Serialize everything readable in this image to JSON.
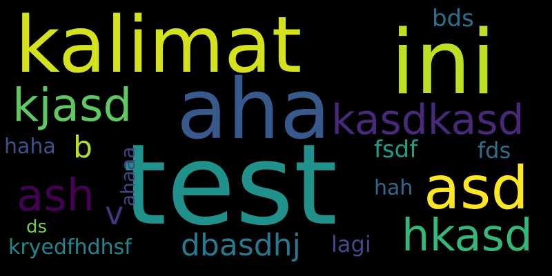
{
  "words": [
    {
      "text": "kalimat",
      "color": "#d3e21c"
    },
    {
      "text": "ini",
      "color": "#bddf26"
    },
    {
      "text": "aha",
      "color": "#38598c"
    },
    {
      "text": "test",
      "color": "#21918c"
    },
    {
      "text": "kjasd",
      "color": "#5ec962"
    },
    {
      "text": "kasdkasd",
      "color": "#482878"
    },
    {
      "text": "asd",
      "color": "#fde725"
    },
    {
      "text": "ash",
      "color": "#440154"
    },
    {
      "text": "hkasd",
      "color": "#35b779"
    },
    {
      "text": "dbasdhj",
      "color": "#2a788e"
    },
    {
      "text": "kryedfhdhsf",
      "color": "#25858e"
    },
    {
      "text": "bds",
      "color": "#2c728e"
    },
    {
      "text": "haha",
      "color": "#3b528b"
    },
    {
      "text": "b",
      "color": "#b5de2b"
    },
    {
      "text": "ahaaa",
      "color": "#414487"
    },
    {
      "text": "fsdf",
      "color": "#1f9e89"
    },
    {
      "text": "fds",
      "color": "#2c728e"
    },
    {
      "text": "v",
      "color": "#46327e"
    },
    {
      "text": "hah",
      "color": "#31688e"
    },
    {
      "text": "ds",
      "color": "#6ece58"
    },
    {
      "text": "lagi",
      "color": "#3e4a89"
    }
  ]
}
